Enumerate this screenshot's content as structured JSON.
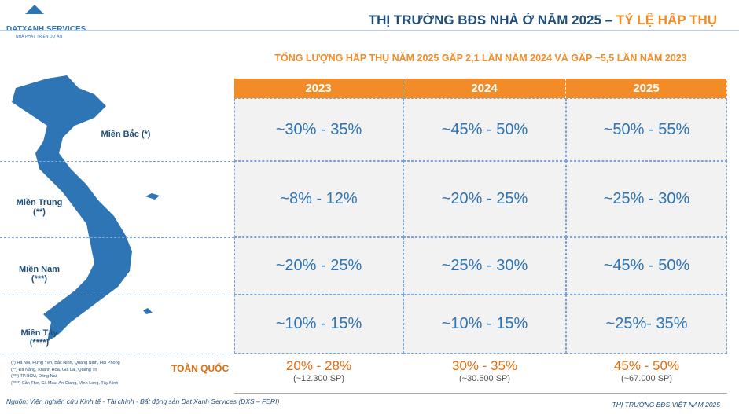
{
  "logo": {
    "name": "DATXANH SERVICES",
    "tagline": "NHÀ PHÁT TRIỂN DỰ ÁN"
  },
  "header": {
    "title": "THỊ TRƯỜNG BĐS NHÀ Ở NĂM 2025 – ",
    "title_highlight": "TỶ LỆ HẤP THỤ",
    "subtitle": "TỔNG LƯỢNG HẤP THỤ NĂM 2025 GẤP 2,1 LẦN NĂM 2024 VÀ GẤP ~5,5 LẦN NĂM 2023"
  },
  "table": {
    "columns": [
      "2023",
      "2024",
      "2025"
    ],
    "rows": [
      {
        "label": "Miền Bắc",
        "note": "(*)",
        "values": [
          "~30% - 35%",
          "~45% - 50%",
          "~50% - 55%"
        ]
      },
      {
        "label": "Miền Trung",
        "note": "(**)",
        "values": [
          "~8% - 12%",
          "~20% - 25%",
          "~25% - 30%"
        ]
      },
      {
        "label": "Miền Nam",
        "note": "(***)",
        "values": [
          "~20% - 25%",
          "~25% - 30%",
          "~45% - 50%"
        ]
      },
      {
        "label": "Miền Tây",
        "note": "(****)",
        "values": [
          "~10% - 15%",
          "~10% - 15%",
          "~25%- 35%"
        ]
      }
    ],
    "total": {
      "label": "TOÀN QUỐC",
      "values": [
        "20% - 28%",
        "30% - 35%",
        "45% - 50%"
      ],
      "units": [
        "(~12.300 SP)",
        "(~30.500 SP)",
        "(~67.000 SP)"
      ]
    }
  },
  "footnotes": [
    "(*) Hà Nội, Hưng Yên, Bắc Ninh, Quảng Ninh, Hải Phòng",
    "(**) Đà Nẵng, Khánh Hòa, Gia Lai, Quảng Trị",
    "(***) TP.HCM, Đồng Nai",
    "(****) Cần Thơ, Cà Mau, An Giang, Vĩnh Long, Tây Ninh"
  ],
  "source": "Nguồn: Viện nghiên cứu Kinh tế - Tài chính - Bất động sản Dat Xanh Services (DXS – FERI)",
  "footer": "THỊ TRƯỜNG BĐS VIỆT NAM 2025"
}
